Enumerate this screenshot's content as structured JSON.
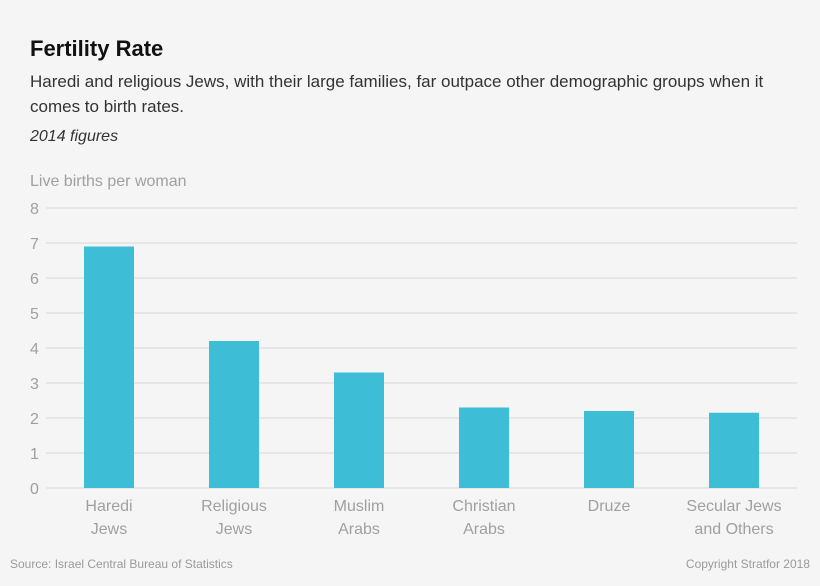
{
  "header": {
    "title": "Fertility Rate",
    "subtitle": "Haredi and religious Jews, with their large families, far outpace other demographic groups when it comes to birth rates.",
    "note": "2014 figures"
  },
  "footer": {
    "source": "Source: Israel Central Bureau of Statistics",
    "copyright": "Copyright Stratfor 2018"
  },
  "chart_data": {
    "type": "bar",
    "title": "Fertility Rate",
    "ylabel": "Live births per woman",
    "xlabel": "",
    "ylim": [
      0,
      8
    ],
    "yticks": [
      0,
      1,
      2,
      3,
      4,
      5,
      6,
      7,
      8
    ],
    "grid": true,
    "categories": [
      [
        "Haredi",
        "Jews"
      ],
      [
        "Religious",
        "Jews"
      ],
      [
        "Muslim",
        "Arabs"
      ],
      [
        "Christian",
        "Arabs"
      ],
      [
        "Druze"
      ],
      [
        "Secular Jews",
        "and Others"
      ]
    ],
    "values": [
      6.9,
      4.2,
      3.3,
      2.3,
      2.2,
      2.15
    ],
    "bar_color": "#3dbdd6",
    "grid_color": "#d6d6d6"
  }
}
